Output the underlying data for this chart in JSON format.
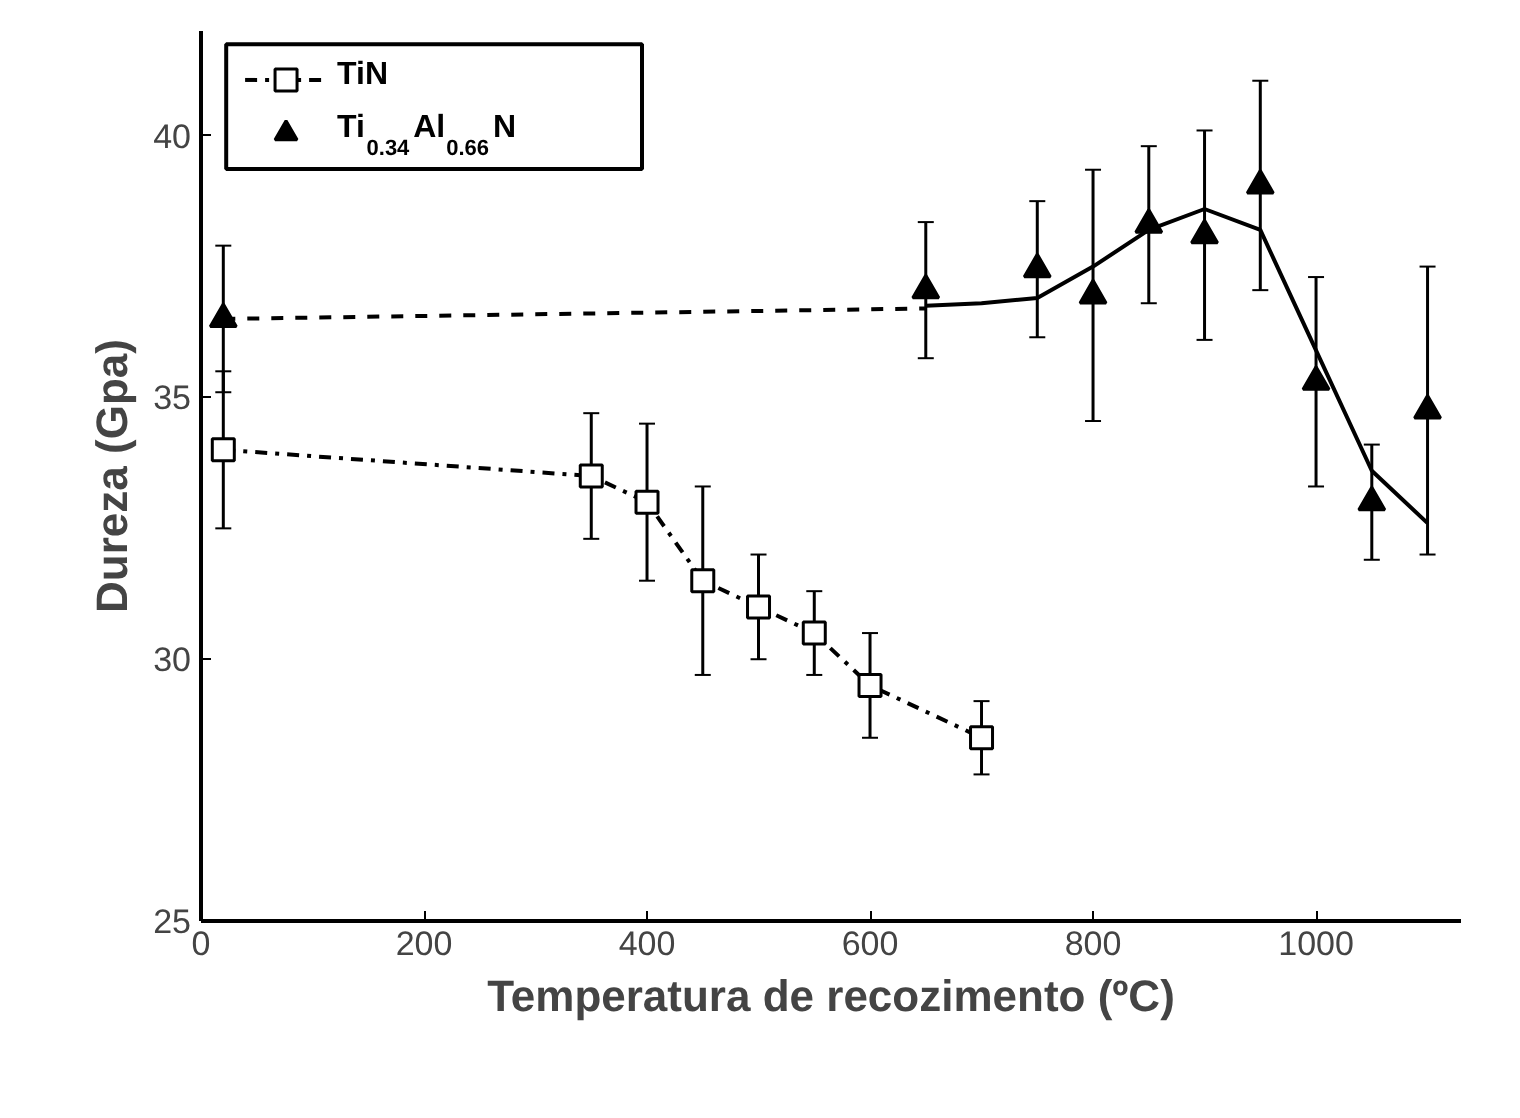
{
  "chart_data": {
    "type": "line",
    "xlabel": "Temperatura de recozimento (ºC)",
    "ylabel": "Dureza (Gpa)",
    "xlim": [
      0,
      1130
    ],
    "ylim": [
      25,
      42
    ],
    "xticks": [
      0,
      200,
      400,
      600,
      800,
      1000
    ],
    "yticks": [
      25,
      30,
      35,
      40
    ],
    "grid": false,
    "legend": "top left",
    "series": [
      {
        "name": "TiN",
        "color": "#000000",
        "marker": "square",
        "line_style": "dashdot",
        "x": [
          20,
          350,
          400,
          450,
          500,
          550,
          600,
          700
        ],
        "values": [
          34.0,
          33.5,
          33.0,
          31.5,
          31.0,
          30.5,
          29.5,
          28.5
        ],
        "errors": [
          1.5,
          1.2,
          1.5,
          1.8,
          1.0,
          0.8,
          1.0,
          0.7
        ]
      },
      {
        "name": "Ti$_{0.34}$Al$_{0.66}$N",
        "type": "scatter",
        "color": "#000000",
        "marker": "triangle",
        "x": [
          20,
          650,
          750,
          800,
          850,
          900,
          950,
          1000,
          1050,
          1100
        ],
        "values": [
          36.5,
          37.05,
          37.45,
          36.95,
          38.3,
          38.1,
          39.05,
          35.3,
          33.0,
          34.75
        ],
        "errors": [
          1.4,
          1.3,
          1.3,
          2.4,
          1.5,
          2.0,
          2.0,
          2.0,
          1.1,
          [
            32.0,
            37.5
          ]
        ]
      },
      {
        "color": "#000000",
        "marker": "none",
        "line_style": "dashed",
        "x": [
          20,
          650
        ],
        "values": [
          36.5,
          36.7
        ]
      },
      {
        "color": "#000000",
        "marker": "none",
        "line_style": "solid",
        "x": [
          650,
          700,
          750,
          800,
          850,
          900,
          950,
          1000,
          1050,
          1100
        ],
        "values": [
          36.75,
          36.8,
          36.9,
          37.5,
          38.2,
          38.6,
          38.2,
          35.9,
          33.6,
          32.6
        ]
      }
    ]
  }
}
